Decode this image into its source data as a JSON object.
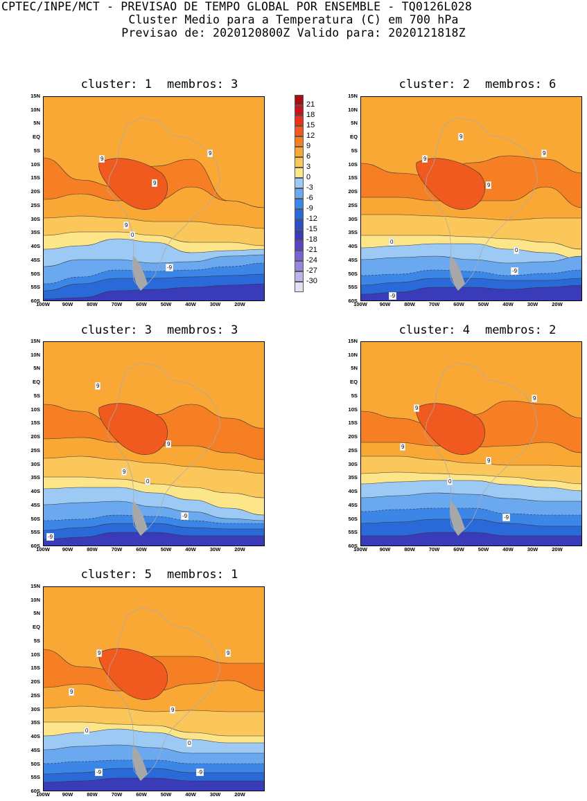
{
  "header": {
    "line1": "CPTEC/INPE/MCT - PREVISAO DE TEMPO GLOBAL POR ENSEMBLE - TQ0126L028",
    "line2": "Cluster Medio para a Temperatura (C) em 700 hPa",
    "line3": "Previsao de: 2020120800Z   Valido para: 2020121818Z"
  },
  "axes": {
    "y_ticks": [
      "15N",
      "10N",
      "5N",
      "EQ",
      "5S",
      "10S",
      "15S",
      "20S",
      "25S",
      "30S",
      "35S",
      "40S",
      "45S",
      "50S",
      "55S",
      "60S"
    ],
    "x_ticks": [
      "100W",
      "90W",
      "80W",
      "70W",
      "60W",
      "50W",
      "40W",
      "30W",
      "20W"
    ]
  },
  "legend": {
    "labels": [
      "21",
      "18",
      "15",
      "12",
      "9",
      "6",
      "3",
      "0",
      "-3",
      "-6",
      "-9",
      "-12",
      "-15",
      "-18",
      "-21",
      "-24",
      "-27",
      "-30"
    ],
    "colors": [
      "#a50f15",
      "#c8141c",
      "#e8331a",
      "#f05a1e",
      "#f57f22",
      "#f9a735",
      "#fbc65a",
      "#fde68a",
      "#9ccaf5",
      "#6aa9ef",
      "#3b86e6",
      "#2a69d8",
      "#2a4fc8",
      "#3a3bb8",
      "#5a44c2",
      "#7a62d0",
      "#9a85dc",
      "#bfb3e8",
      "#e6e0f5"
    ]
  },
  "panels": [
    {
      "cluster_label": "cluster: 1",
      "members_label": "membros: 3",
      "contour_labels": [
        {
          "text": "9"
        },
        {
          "text": "9"
        },
        {
          "text": "9"
        },
        {
          "text": "9"
        },
        {
          "text": "0"
        },
        {
          "text": "-9"
        }
      ]
    },
    {
      "cluster_label": "cluster: 2",
      "members_label": "membros: 6",
      "contour_labels": [
        {
          "text": "9"
        },
        {
          "text": "9"
        },
        {
          "text": "9"
        },
        {
          "text": "9"
        },
        {
          "text": "0"
        },
        {
          "text": "0"
        },
        {
          "text": "-9"
        },
        {
          "text": "-9"
        }
      ]
    },
    {
      "cluster_label": "cluster: 3",
      "members_label": "membros: 3",
      "contour_labels": [
        {
          "text": "9"
        },
        {
          "text": "9"
        },
        {
          "text": "9"
        },
        {
          "text": "0"
        },
        {
          "text": "-9"
        },
        {
          "text": "-9"
        }
      ]
    },
    {
      "cluster_label": "cluster: 4",
      "members_label": "membros: 2",
      "contour_labels": [
        {
          "text": "9"
        },
        {
          "text": "9"
        },
        {
          "text": "9"
        },
        {
          "text": "9"
        },
        {
          "text": "0"
        },
        {
          "text": "-9"
        }
      ]
    },
    {
      "cluster_label": "cluster: 5",
      "members_label": "membros: 1",
      "contour_labels": [
        {
          "text": "9"
        },
        {
          "text": "9"
        },
        {
          "text": "9"
        },
        {
          "text": "9"
        },
        {
          "text": "0"
        },
        {
          "text": "0"
        },
        {
          "text": "-9"
        },
        {
          "text": "-9"
        }
      ]
    }
  ]
}
